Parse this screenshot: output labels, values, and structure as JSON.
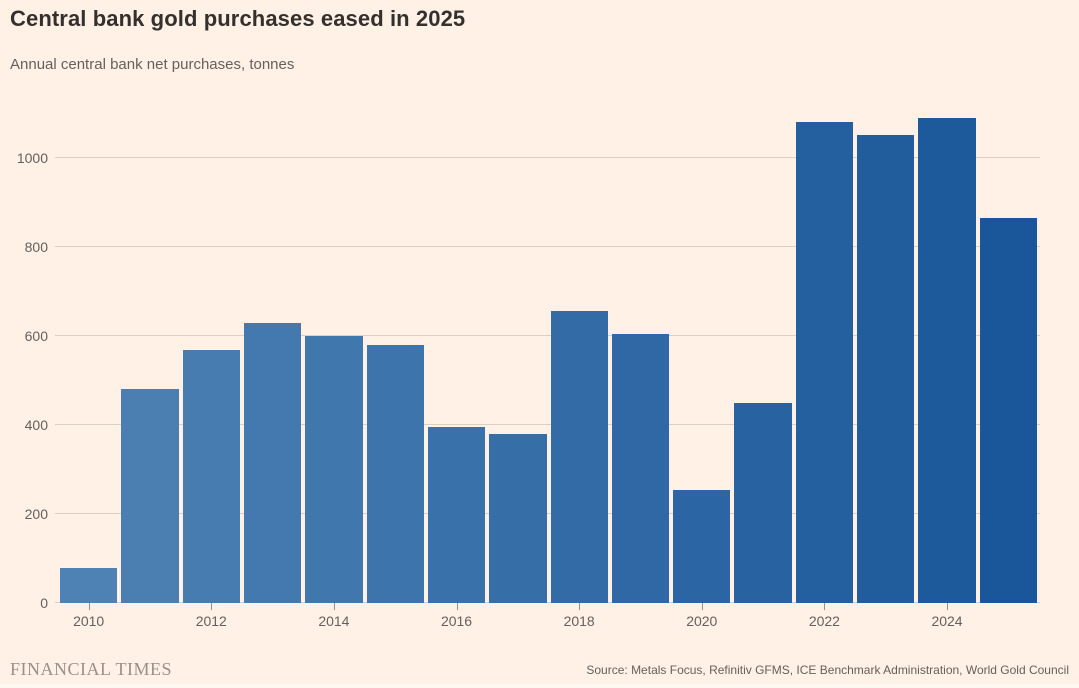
{
  "title": "Central bank gold purchases eased in 2025",
  "subtitle": "Annual central bank net purchases, tonnes",
  "footer": {
    "brand": "FINANCIAL TIMES",
    "source": "Source: Metals Focus, Refinitiv GFMS, ICE Benchmark Administration, World Gold Council"
  },
  "colors": {
    "background": "#fff1e5",
    "title_text": "#33302e",
    "muted_text": "#66605c",
    "gridline": "#d8d0c5",
    "tick": "#99918a",
    "brand_text": "#9a9087",
    "bar_color_start": "#4e82b4",
    "bar_color_end": "#1a579a"
  },
  "chart_data": {
    "type": "bar",
    "title": "Central bank gold purchases eased in 2025",
    "subtitle": "Annual central bank net purchases, tonnes",
    "xlabel": "",
    "ylabel": "tonnes",
    "x": [
      2010,
      2011,
      2012,
      2013,
      2014,
      2015,
      2016,
      2017,
      2018,
      2019,
      2020,
      2021,
      2022,
      2023,
      2024,
      2025
    ],
    "values": [
      79,
      481,
      569,
      629,
      601,
      580,
      395,
      379,
      656,
      605,
      255,
      450,
      1082,
      1051,
      1089,
      865
    ],
    "ylim": [
      0,
      1100
    ],
    "yticks": [
      0,
      200,
      400,
      600,
      800,
      1000
    ],
    "xticks": [
      2010,
      2012,
      2014,
      2016,
      2018,
      2020,
      2022,
      2024
    ],
    "grid": "horizontal",
    "legend": "none",
    "bar_color_start": "#4e82b4",
    "bar_color_end": "#1a579a"
  }
}
